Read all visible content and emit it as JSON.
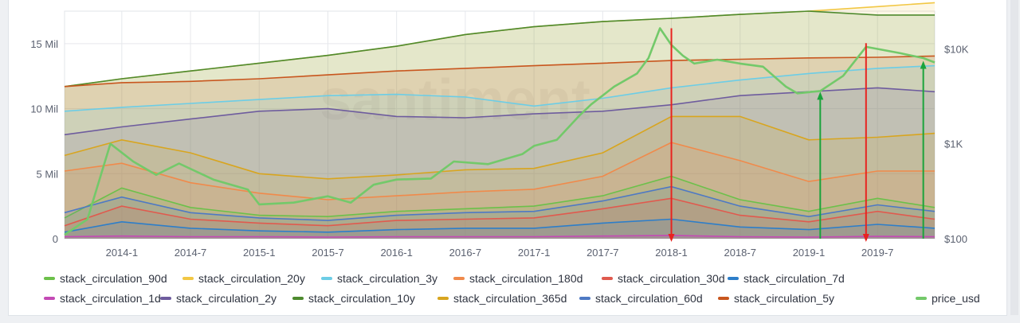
{
  "chart_data": {
    "type": "area",
    "title": "",
    "xlabel": "",
    "ylabel": "",
    "x_ticks": [
      "2014-1",
      "2014-7",
      "2015-1",
      "2015-7",
      "2016-1",
      "2016-7",
      "2017-1",
      "2017-7",
      "2018-1",
      "2018-7",
      "2019-1",
      "2019-7"
    ],
    "x_range": [
      "2013-08",
      "2019-12"
    ],
    "y_left_ticks": [
      {
        "value": 0,
        "label": "0"
      },
      {
        "value": 5000000,
        "label": "5 Mil"
      },
      {
        "value": 10000000,
        "label": "10 Mil"
      },
      {
        "value": 15000000,
        "label": "15 Mil"
      }
    ],
    "y_left_range": [
      0,
      17500000
    ],
    "y_right_scale": "log",
    "y_right_ticks": [
      {
        "value": 100,
        "label": "$100"
      },
      {
        "value": 1000,
        "label": "$1K"
      },
      {
        "value": 10000,
        "label": "$10K"
      }
    ],
    "y_right_range": [
      100,
      25000
    ],
    "grid": true,
    "legend_position": "bottom",
    "series": [
      {
        "name": "stack_circulation_90d",
        "color": "#6cc04a",
        "axis": "left",
        "points": [
          [
            "2013-08",
            1600000
          ],
          [
            "2014-01",
            3900000
          ],
          [
            "2014-07",
            2400000
          ],
          [
            "2015-01",
            1800000
          ],
          [
            "2015-07",
            1700000
          ],
          [
            "2016-01",
            2100000
          ],
          [
            "2016-07",
            2300000
          ],
          [
            "2017-01",
            2500000
          ],
          [
            "2017-07",
            3300000
          ],
          [
            "2018-01",
            4800000
          ],
          [
            "2018-07",
            3000000
          ],
          [
            "2019-01",
            2100000
          ],
          [
            "2019-07",
            3100000
          ],
          [
            "2019-12",
            2400000
          ]
        ]
      },
      {
        "name": "stack_circulation_20y",
        "color": "#f2c744",
        "axis": "left",
        "points": [
          [
            "2013-08",
            11700000
          ],
          [
            "2014-01",
            12300000
          ],
          [
            "2014-07",
            12900000
          ],
          [
            "2015-01",
            13500000
          ],
          [
            "2015-07",
            14100000
          ],
          [
            "2016-01",
            14800000
          ],
          [
            "2016-07",
            15700000
          ],
          [
            "2017-01",
            16300000
          ],
          [
            "2017-07",
            16700000
          ],
          [
            "2018-01",
            16950000
          ],
          [
            "2018-07",
            17250000
          ],
          [
            "2019-01",
            17500000
          ],
          [
            "2019-07",
            17850000
          ],
          [
            "2019-12",
            18150000
          ]
        ]
      },
      {
        "name": "stack_circulation_3y",
        "color": "#6ccde6",
        "axis": "left",
        "points": [
          [
            "2013-08",
            9800000
          ],
          [
            "2014-01",
            10100000
          ],
          [
            "2014-07",
            10400000
          ],
          [
            "2015-01",
            10700000
          ],
          [
            "2015-07",
            11000000
          ],
          [
            "2016-01",
            11100000
          ],
          [
            "2016-07",
            10900000
          ],
          [
            "2017-01",
            10200000
          ],
          [
            "2017-07",
            10800000
          ],
          [
            "2018-01",
            11600000
          ],
          [
            "2018-07",
            12200000
          ],
          [
            "2019-01",
            12700000
          ],
          [
            "2019-07",
            13100000
          ],
          [
            "2019-12",
            13300000
          ]
        ]
      },
      {
        "name": "stack_circulation_180d",
        "color": "#f08a4b",
        "axis": "left",
        "points": [
          [
            "2013-08",
            5200000
          ],
          [
            "2014-01",
            5800000
          ],
          [
            "2014-07",
            4300000
          ],
          [
            "2015-01",
            3500000
          ],
          [
            "2015-07",
            3000000
          ],
          [
            "2016-01",
            3300000
          ],
          [
            "2016-07",
            3600000
          ],
          [
            "2017-01",
            3800000
          ],
          [
            "2017-07",
            4800000
          ],
          [
            "2018-01",
            7400000
          ],
          [
            "2018-07",
            6000000
          ],
          [
            "2019-01",
            4400000
          ],
          [
            "2019-07",
            5200000
          ],
          [
            "2019-12",
            5200000
          ]
        ]
      },
      {
        "name": "stack_circulation_30d",
        "color": "#e05a4e",
        "axis": "left",
        "points": [
          [
            "2013-08",
            1000000
          ],
          [
            "2014-01",
            2500000
          ],
          [
            "2014-07",
            1500000
          ],
          [
            "2015-01",
            1200000
          ],
          [
            "2015-07",
            1000000
          ],
          [
            "2016-01",
            1400000
          ],
          [
            "2016-07",
            1500000
          ],
          [
            "2017-01",
            1600000
          ],
          [
            "2017-07",
            2300000
          ],
          [
            "2018-01",
            3100000
          ],
          [
            "2018-07",
            1800000
          ],
          [
            "2019-01",
            1300000
          ],
          [
            "2019-07",
            2100000
          ],
          [
            "2019-12",
            1500000
          ]
        ]
      },
      {
        "name": "stack_circulation_7d",
        "color": "#2d7ec9",
        "axis": "left",
        "points": [
          [
            "2013-08",
            500000
          ],
          [
            "2014-01",
            1300000
          ],
          [
            "2014-07",
            800000
          ],
          [
            "2015-01",
            600000
          ],
          [
            "2015-07",
            500000
          ],
          [
            "2016-01",
            700000
          ],
          [
            "2016-07",
            800000
          ],
          [
            "2017-01",
            800000
          ],
          [
            "2017-07",
            1200000
          ],
          [
            "2018-01",
            1500000
          ],
          [
            "2018-07",
            900000
          ],
          [
            "2019-01",
            700000
          ],
          [
            "2019-07",
            1100000
          ],
          [
            "2019-12",
            800000
          ]
        ]
      },
      {
        "name": "stack_circulation_1d",
        "color": "#c44ab5",
        "axis": "left",
        "points": [
          [
            "2013-08",
            150000
          ],
          [
            "2014-01",
            200000
          ],
          [
            "2014-07",
            150000
          ],
          [
            "2015-01",
            150000
          ],
          [
            "2015-07",
            120000
          ],
          [
            "2016-01",
            150000
          ],
          [
            "2016-07",
            150000
          ],
          [
            "2017-01",
            150000
          ],
          [
            "2017-07",
            200000
          ],
          [
            "2018-01",
            250000
          ],
          [
            "2018-07",
            150000
          ],
          [
            "2019-01",
            120000
          ],
          [
            "2019-07",
            180000
          ],
          [
            "2019-12",
            150000
          ]
        ]
      },
      {
        "name": "stack_circulation_2y",
        "color": "#6e5c9e",
        "axis": "left",
        "points": [
          [
            "2013-08",
            8000000
          ],
          [
            "2014-01",
            8600000
          ],
          [
            "2014-07",
            9200000
          ],
          [
            "2015-01",
            9800000
          ],
          [
            "2015-07",
            10000000
          ],
          [
            "2016-01",
            9400000
          ],
          [
            "2016-07",
            9300000
          ],
          [
            "2017-01",
            9600000
          ],
          [
            "2017-07",
            9800000
          ],
          [
            "2018-01",
            10300000
          ],
          [
            "2018-07",
            11000000
          ],
          [
            "2019-01",
            11300000
          ],
          [
            "2019-07",
            11600000
          ],
          [
            "2019-12",
            11300000
          ]
        ]
      },
      {
        "name": "stack_circulation_10y",
        "color": "#4e8a2e",
        "axis": "left",
        "points": [
          [
            "2013-08",
            11700000
          ],
          [
            "2014-01",
            12300000
          ],
          [
            "2014-07",
            12900000
          ],
          [
            "2015-01",
            13500000
          ],
          [
            "2015-07",
            14100000
          ],
          [
            "2016-01",
            14800000
          ],
          [
            "2016-07",
            15700000
          ],
          [
            "2017-01",
            16300000
          ],
          [
            "2017-07",
            16700000
          ],
          [
            "2018-01",
            16950000
          ],
          [
            "2018-07",
            17250000
          ],
          [
            "2019-01",
            17500000
          ],
          [
            "2019-07",
            17200000
          ],
          [
            "2019-12",
            17200000
          ]
        ]
      },
      {
        "name": "stack_circulation_365d",
        "color": "#d8a51f",
        "axis": "left",
        "points": [
          [
            "2013-08",
            6400000
          ],
          [
            "2014-01",
            7600000
          ],
          [
            "2014-07",
            6600000
          ],
          [
            "2015-01",
            5000000
          ],
          [
            "2015-07",
            4600000
          ],
          [
            "2016-01",
            4900000
          ],
          [
            "2016-07",
            5300000
          ],
          [
            "2017-01",
            5400000
          ],
          [
            "2017-07",
            6600000
          ],
          [
            "2018-01",
            9400000
          ],
          [
            "2018-07",
            9400000
          ],
          [
            "2019-01",
            7600000
          ],
          [
            "2019-07",
            7800000
          ],
          [
            "2019-12",
            8100000
          ]
        ]
      },
      {
        "name": "stack_circulation_60d",
        "color": "#4e79c4",
        "axis": "left",
        "points": [
          [
            "2013-08",
            2000000
          ],
          [
            "2014-01",
            3200000
          ],
          [
            "2014-07",
            2000000
          ],
          [
            "2015-01",
            1600000
          ],
          [
            "2015-07",
            1400000
          ],
          [
            "2016-01",
            1800000
          ],
          [
            "2016-07",
            2000000
          ],
          [
            "2017-01",
            2100000
          ],
          [
            "2017-07",
            2900000
          ],
          [
            "2018-01",
            4000000
          ],
          [
            "2018-07",
            2500000
          ],
          [
            "2019-01",
            1700000
          ],
          [
            "2019-07",
            2600000
          ],
          [
            "2019-12",
            2100000
          ]
        ]
      },
      {
        "name": "stack_circulation_5y",
        "color": "#c8561e",
        "axis": "left",
        "points": [
          [
            "2013-08",
            11700000
          ],
          [
            "2014-01",
            12000000
          ],
          [
            "2014-07",
            12100000
          ],
          [
            "2015-01",
            12300000
          ],
          [
            "2015-07",
            12600000
          ],
          [
            "2016-01",
            12900000
          ],
          [
            "2016-07",
            13100000
          ],
          [
            "2017-01",
            13300000
          ],
          [
            "2017-07",
            13500000
          ],
          [
            "2018-01",
            13700000
          ],
          [
            "2018-07",
            13800000
          ],
          [
            "2019-01",
            13900000
          ],
          [
            "2019-07",
            13950000
          ],
          [
            "2019-12",
            14050000
          ]
        ]
      },
      {
        "name": "price_usd",
        "color": "#73c96a",
        "axis": "right",
        "points": [
          [
            "2013-08",
            110
          ],
          [
            "2013-10",
            160
          ],
          [
            "2013-12",
            1000
          ],
          [
            "2014-02",
            650
          ],
          [
            "2014-04",
            470
          ],
          [
            "2014-06",
            620
          ],
          [
            "2014-09",
            420
          ],
          [
            "2014-12",
            330
          ],
          [
            "2015-01",
            230
          ],
          [
            "2015-04",
            240
          ],
          [
            "2015-07",
            280
          ],
          [
            "2015-09",
            240
          ],
          [
            "2015-11",
            370
          ],
          [
            "2016-01",
            420
          ],
          [
            "2016-04",
            430
          ],
          [
            "2016-06",
            650
          ],
          [
            "2016-09",
            610
          ],
          [
            "2016-12",
            780
          ],
          [
            "2017-01",
            950
          ],
          [
            "2017-03",
            1100
          ],
          [
            "2017-05",
            2000
          ],
          [
            "2017-06",
            2600
          ],
          [
            "2017-08",
            4000
          ],
          [
            "2017-10",
            5500
          ],
          [
            "2017-11",
            8000
          ],
          [
            "2017-12",
            16500
          ],
          [
            "2018-01",
            11000
          ],
          [
            "2018-02",
            8500
          ],
          [
            "2018-03",
            7000
          ],
          [
            "2018-05",
            7700
          ],
          [
            "2018-07",
            7000
          ],
          [
            "2018-09",
            6500
          ],
          [
            "2018-11",
            4000
          ],
          [
            "2018-12",
            3400
          ],
          [
            "2019-02",
            3600
          ],
          [
            "2019-04",
            5200
          ],
          [
            "2019-06",
            10500
          ],
          [
            "2019-07",
            10000
          ],
          [
            "2019-09",
            9000
          ],
          [
            "2019-11",
            8000
          ],
          [
            "2019-12",
            7200
          ]
        ]
      }
    ],
    "annotations": [
      {
        "kind": "arrow",
        "color": "#e8231f",
        "direction": "down",
        "x": "2018-01",
        "y_top_usd": 16500
      },
      {
        "kind": "arrow",
        "color": "#e8231f",
        "direction": "down",
        "x": "2019-06",
        "y_top_usd": 11500
      },
      {
        "kind": "arrow",
        "color": "#1aa33b",
        "direction": "up",
        "x": "2019-02",
        "y_top_usd": 3400
      },
      {
        "kind": "arrow",
        "color": "#1aa33b",
        "direction": "up",
        "x": "2019-11",
        "y_top_usd": 7200
      }
    ],
    "watermark": "santiment"
  },
  "legend": [
    "stack_circulation_90d",
    "stack_circulation_20y",
    "stack_circulation_3y",
    "stack_circulation_180d",
    "stack_circulation_30d",
    "stack_circulation_7d",
    "stack_circulation_1d",
    "stack_circulation_2y",
    "stack_circulation_10y",
    "stack_circulation_365d",
    "stack_circulation_60d",
    "stack_circulation_5y",
    "price_usd"
  ]
}
